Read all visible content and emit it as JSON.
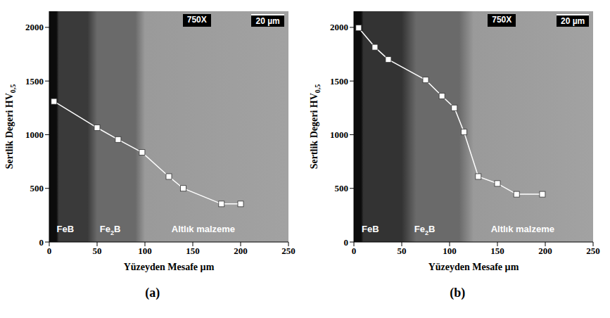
{
  "chart_data": [
    {
      "type": "line",
      "panel": "(a)",
      "x": [
        5,
        50,
        72,
        97,
        125,
        140,
        180,
        200
      ],
      "values": [
        1310,
        1065,
        955,
        835,
        610,
        500,
        355,
        355
      ],
      "color": "#ffffff",
      "marker": "square",
      "line_style": "solid",
      "xlim": [
        0,
        250
      ],
      "xticks": [
        0,
        50,
        100,
        150,
        200,
        250
      ],
      "ylim": [
        0,
        2150
      ],
      "yticks": [
        0,
        500,
        1000,
        1500,
        2000
      ],
      "xlabel": "Yüzeyden Mesafe µm",
      "ylabel": {
        "text": "Sertlik Degeri HV",
        "subscript": "0,5"
      },
      "annotations": {
        "magnification": "750X",
        "scale_bar": "20 µm",
        "layers": [
          {
            "text": "FeB"
          },
          {
            "text": "Fe",
            "subscript": "2",
            "suffix": "B"
          },
          {
            "text": "Altlık malzeme"
          }
        ]
      }
    },
    {
      "type": "line",
      "panel": "(b)",
      "x": [
        5,
        22,
        36,
        75,
        92,
        105,
        115,
        130,
        150,
        170,
        197
      ],
      "values": [
        1995,
        1815,
        1700,
        1510,
        1360,
        1250,
        1025,
        610,
        545,
        445,
        445
      ],
      "color": "#ffffff",
      "marker": "square",
      "line_style": "solid",
      "xlim": [
        0,
        250
      ],
      "xticks": [
        0,
        50,
        100,
        150,
        200,
        250
      ],
      "ylim": [
        0,
        2150
      ],
      "yticks": [
        0,
        500,
        1000,
        1500,
        2000
      ],
      "xlabel": "Yüzeyden Mesafe µm",
      "ylabel": {
        "text": "Sertlik Degeri HV",
        "subscript": "0,5"
      },
      "annotations": {
        "magnification": "750X",
        "scale_bar": "20 µm",
        "layers": [
          {
            "text": "FeB"
          },
          {
            "text": "Fe",
            "subscript": "2",
            "suffix": "B"
          },
          {
            "text": "Altlık malzeme"
          }
        ]
      }
    }
  ]
}
